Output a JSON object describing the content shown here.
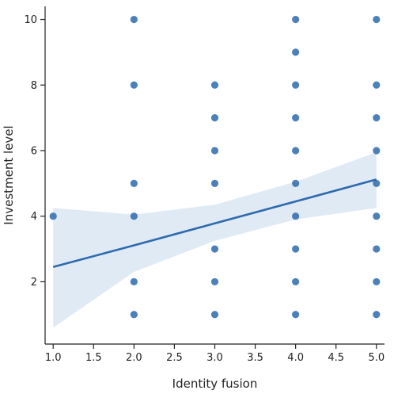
{
  "chart_data": {
    "type": "scatter",
    "title": "",
    "xlabel": "Identity fusion",
    "ylabel": "Investment level",
    "xlim": [
      0.9,
      5.1
    ],
    "ylim": [
      0.1,
      10.4
    ],
    "xticks": [
      1.0,
      1.5,
      2.0,
      2.5,
      3.0,
      3.5,
      4.0,
      4.5,
      5.0
    ],
    "xtick_labels": [
      "1.0",
      "1.5",
      "2.0",
      "2.5",
      "3.0",
      "3.5",
      "4.0",
      "4.5",
      "5.0"
    ],
    "yticks": [
      2,
      4,
      6,
      8,
      10
    ],
    "ytick_labels": [
      "2",
      "4",
      "6",
      "8",
      "10"
    ],
    "grid": false,
    "legend": "none",
    "point_color": "#2d6aad",
    "points": [
      {
        "x": 1.0,
        "y": 4
      },
      {
        "x": 2.0,
        "y": 10
      },
      {
        "x": 2.0,
        "y": 8
      },
      {
        "x": 2.0,
        "y": 5
      },
      {
        "x": 2.0,
        "y": 4
      },
      {
        "x": 2.0,
        "y": 2
      },
      {
        "x": 2.0,
        "y": 1
      },
      {
        "x": 3.0,
        "y": 8
      },
      {
        "x": 3.0,
        "y": 7
      },
      {
        "x": 3.0,
        "y": 6
      },
      {
        "x": 3.0,
        "y": 5
      },
      {
        "x": 3.0,
        "y": 3
      },
      {
        "x": 3.0,
        "y": 2
      },
      {
        "x": 3.0,
        "y": 1
      },
      {
        "x": 4.0,
        "y": 10
      },
      {
        "x": 4.0,
        "y": 9
      },
      {
        "x": 4.0,
        "y": 8
      },
      {
        "x": 4.0,
        "y": 7
      },
      {
        "x": 4.0,
        "y": 6
      },
      {
        "x": 4.0,
        "y": 5
      },
      {
        "x": 4.0,
        "y": 4
      },
      {
        "x": 4.0,
        "y": 3
      },
      {
        "x": 4.0,
        "y": 2
      },
      {
        "x": 4.0,
        "y": 1
      },
      {
        "x": 5.0,
        "y": 10
      },
      {
        "x": 5.0,
        "y": 8
      },
      {
        "x": 5.0,
        "y": 7
      },
      {
        "x": 5.0,
        "y": 6
      },
      {
        "x": 5.0,
        "y": 5
      },
      {
        "x": 5.0,
        "y": 4
      },
      {
        "x": 5.0,
        "y": 3
      },
      {
        "x": 5.0,
        "y": 2
      },
      {
        "x": 5.0,
        "y": 1
      }
    ],
    "regression": {
      "line_color": "#2d6aad",
      "band_color": "#d6e3f2",
      "x": [
        1.0,
        2.0,
        3.0,
        4.0,
        5.0
      ],
      "y": [
        2.45,
        3.11,
        3.78,
        4.45,
        5.12
      ],
      "ci_upper": [
        4.25,
        4.05,
        4.35,
        5.05,
        5.95
      ],
      "ci_lower": [
        0.6,
        2.3,
        3.25,
        3.9,
        4.25
      ]
    }
  }
}
